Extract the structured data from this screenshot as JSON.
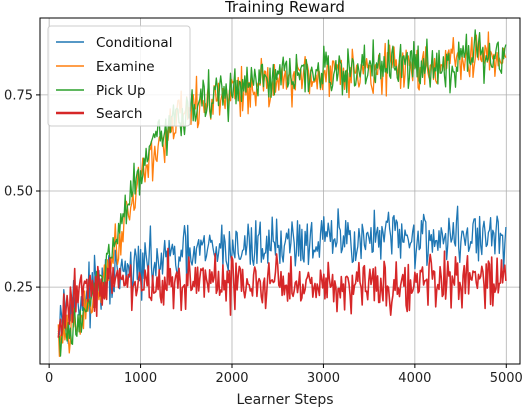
{
  "chart_data": {
    "type": "line",
    "title": "Training Reward",
    "xlabel": "Learner Steps",
    "ylabel": "",
    "xlim": [
      -100,
      5150
    ],
    "ylim": [
      0.05,
      0.95
    ],
    "xticks": [
      0,
      1000,
      2000,
      3000,
      4000,
      5000
    ],
    "yticks": [
      0.25,
      0.5,
      0.75
    ],
    "ytick_labels": [
      "0.25",
      "0.50",
      "0.75"
    ],
    "grid": true,
    "legend_position": "top-left",
    "series": [
      {
        "name": "Conditional",
        "color": "#1f77b4",
        "x": [
          100,
          300,
          500,
          700,
          900,
          1100,
          1300,
          1500,
          1700,
          1900,
          2100,
          2300,
          2500,
          2700,
          2900,
          3100,
          3300,
          3500,
          3700,
          3900,
          4100,
          4300,
          4500,
          4700,
          4900,
          5000
        ],
        "y": [
          0.2,
          0.21,
          0.24,
          0.27,
          0.29,
          0.31,
          0.32,
          0.33,
          0.34,
          0.35,
          0.35,
          0.36,
          0.37,
          0.37,
          0.37,
          0.37,
          0.38,
          0.37,
          0.38,
          0.38,
          0.38,
          0.38,
          0.38,
          0.38,
          0.38,
          0.38
        ],
        "noise": 0.035
      },
      {
        "name": "Examine",
        "color": "#ff7f0e",
        "x": [
          100,
          250,
          400,
          550,
          700,
          800,
          900,
          1000,
          1100,
          1200,
          1300,
          1400,
          1500,
          1700,
          1900,
          2100,
          2300,
          2500,
          2700,
          2900,
          3100,
          3300,
          3500,
          3700,
          3900,
          4100,
          4300,
          4500,
          4700,
          4900,
          5000
        ],
        "y": [
          0.11,
          0.13,
          0.18,
          0.25,
          0.33,
          0.41,
          0.48,
          0.54,
          0.58,
          0.62,
          0.65,
          0.68,
          0.7,
          0.73,
          0.74,
          0.76,
          0.78,
          0.79,
          0.8,
          0.8,
          0.81,
          0.82,
          0.82,
          0.82,
          0.82,
          0.83,
          0.83,
          0.84,
          0.85,
          0.85,
          0.85
        ],
        "noise": 0.03
      },
      {
        "name": "Pick Up",
        "color": "#2ca02c",
        "x": [
          100,
          250,
          400,
          550,
          700,
          800,
          900,
          1000,
          1100,
          1200,
          1300,
          1400,
          1500,
          1700,
          1900,
          2100,
          2300,
          2500,
          2700,
          2900,
          3100,
          3300,
          3500,
          3700,
          3900,
          4100,
          4300,
          4500,
          4700,
          4900,
          5000
        ],
        "y": [
          0.11,
          0.14,
          0.19,
          0.26,
          0.34,
          0.42,
          0.49,
          0.55,
          0.59,
          0.63,
          0.66,
          0.69,
          0.71,
          0.74,
          0.75,
          0.77,
          0.78,
          0.79,
          0.8,
          0.8,
          0.81,
          0.81,
          0.82,
          0.82,
          0.82,
          0.83,
          0.83,
          0.84,
          0.85,
          0.85,
          0.85
        ],
        "noise": 0.03
      },
      {
        "name": "Search",
        "color": "#d62728",
        "x": [
          100,
          200,
          300,
          500,
          700,
          900,
          1100,
          1300,
          1500,
          1700,
          1900,
          2100,
          2300,
          2500,
          2700,
          2900,
          3100,
          3300,
          3500,
          3700,
          3900,
          4100,
          4300,
          4500,
          4700,
          4900,
          5000
        ],
        "y": [
          0.12,
          0.2,
          0.25,
          0.26,
          0.26,
          0.26,
          0.26,
          0.26,
          0.26,
          0.26,
          0.26,
          0.26,
          0.26,
          0.26,
          0.26,
          0.26,
          0.26,
          0.26,
          0.26,
          0.26,
          0.26,
          0.26,
          0.26,
          0.26,
          0.26,
          0.26,
          0.26
        ],
        "noise": 0.035
      }
    ]
  }
}
